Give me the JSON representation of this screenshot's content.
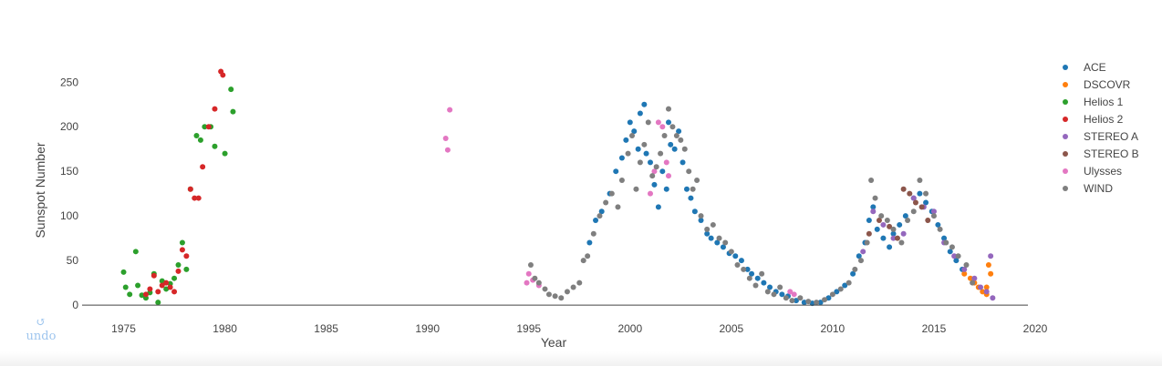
{
  "undo": {
    "icon": "↺",
    "label": "undo",
    "icon_name": "undo-icon"
  },
  "chart_data": {
    "type": "scatter",
    "title": "",
    "xlabel": "Year",
    "ylabel": "Sunspot Number",
    "xlim": [
      1972.5,
      2020
    ],
    "ylim": [
      -3,
      285
    ],
    "xticks": [
      1975,
      1980,
      1985,
      1990,
      1995,
      2000,
      2005,
      2010,
      2015,
      2020
    ],
    "yticks": [
      0,
      50,
      100,
      150,
      200,
      250
    ],
    "grid": false,
    "legend_position": "right",
    "series": [
      {
        "name": "ACE",
        "color": "#1f77b4",
        "points": [
          [
            1998.0,
            70
          ],
          [
            1998.3,
            95
          ],
          [
            1998.6,
            105
          ],
          [
            1999.0,
            125
          ],
          [
            1999.3,
            150
          ],
          [
            1999.6,
            165
          ],
          [
            1999.8,
            185
          ],
          [
            2000.0,
            205
          ],
          [
            2000.2,
            195
          ],
          [
            2000.4,
            175
          ],
          [
            2000.5,
            215
          ],
          [
            2000.7,
            225
          ],
          [
            2000.8,
            170
          ],
          [
            2001.0,
            160
          ],
          [
            2001.2,
            135
          ],
          [
            2001.4,
            110
          ],
          [
            2001.6,
            150
          ],
          [
            2001.8,
            130
          ],
          [
            2001.9,
            205
          ],
          [
            2002.0,
            180
          ],
          [
            2002.2,
            175
          ],
          [
            2002.4,
            195
          ],
          [
            2002.6,
            160
          ],
          [
            2002.8,
            130
          ],
          [
            2003.0,
            120
          ],
          [
            2003.2,
            105
          ],
          [
            2003.5,
            95
          ],
          [
            2003.8,
            80
          ],
          [
            2004.0,
            75
          ],
          [
            2004.3,
            70
          ],
          [
            2004.6,
            65
          ],
          [
            2004.9,
            58
          ],
          [
            2005.2,
            55
          ],
          [
            2005.5,
            50
          ],
          [
            2005.8,
            40
          ],
          [
            2006.0,
            35
          ],
          [
            2006.3,
            30
          ],
          [
            2006.6,
            25
          ],
          [
            2006.9,
            20
          ],
          [
            2007.2,
            15
          ],
          [
            2007.5,
            12
          ],
          [
            2007.8,
            10
          ],
          [
            2008.2,
            5
          ],
          [
            2008.6,
            3
          ],
          [
            2009.0,
            2
          ],
          [
            2009.4,
            3
          ],
          [
            2009.8,
            8
          ],
          [
            2010.2,
            15
          ],
          [
            2010.6,
            22
          ],
          [
            2011.0,
            35
          ],
          [
            2011.3,
            55
          ],
          [
            2011.6,
            70
          ],
          [
            2011.8,
            95
          ],
          [
            2012.0,
            110
          ],
          [
            2012.2,
            85
          ],
          [
            2012.5,
            75
          ],
          [
            2012.8,
            65
          ],
          [
            2013.0,
            80
          ],
          [
            2013.3,
            90
          ],
          [
            2013.6,
            100
          ],
          [
            2014.0,
            120
          ],
          [
            2014.3,
            125
          ],
          [
            2014.6,
            115
          ],
          [
            2014.9,
            105
          ],
          [
            2015.2,
            90
          ],
          [
            2015.5,
            75
          ],
          [
            2015.8,
            60
          ],
          [
            2016.1,
            50
          ],
          [
            2016.4,
            40
          ]
        ]
      },
      {
        "name": "DSCOVR",
        "color": "#ff7f0e",
        "points": [
          [
            2016.5,
            35
          ],
          [
            2016.8,
            30
          ],
          [
            2017.0,
            25
          ],
          [
            2017.2,
            20
          ],
          [
            2017.4,
            15
          ],
          [
            2017.6,
            12
          ],
          [
            2017.7,
            45
          ],
          [
            2017.8,
            35
          ],
          [
            2017.6,
            20
          ]
        ]
      },
      {
        "name": "Helios 1",
        "color": "#2ca02c",
        "points": [
          [
            1975.0,
            37
          ],
          [
            1975.1,
            20
          ],
          [
            1975.3,
            12
          ],
          [
            1975.6,
            60
          ],
          [
            1975.7,
            22
          ],
          [
            1975.9,
            11
          ],
          [
            1976.1,
            8
          ],
          [
            1976.3,
            14
          ],
          [
            1976.5,
            35
          ],
          [
            1976.7,
            3
          ],
          [
            1976.9,
            27
          ],
          [
            1977.1,
            18
          ],
          [
            1977.3,
            24
          ],
          [
            1977.5,
            30
          ],
          [
            1977.7,
            45
          ],
          [
            1977.9,
            70
          ],
          [
            1978.1,
            40
          ],
          [
            1978.3,
            130
          ],
          [
            1978.6,
            190
          ],
          [
            1978.8,
            185
          ],
          [
            1979.0,
            200
          ],
          [
            1979.3,
            200
          ],
          [
            1979.5,
            178
          ],
          [
            1980.0,
            170
          ],
          [
            1980.3,
            242
          ],
          [
            1980.4,
            217
          ]
        ]
      },
      {
        "name": "Helios 2",
        "color": "#d62728",
        "points": [
          [
            1976.1,
            12
          ],
          [
            1976.3,
            18
          ],
          [
            1976.5,
            33
          ],
          [
            1976.7,
            15
          ],
          [
            1976.9,
            22
          ],
          [
            1977.1,
            25
          ],
          [
            1977.3,
            20
          ],
          [
            1977.5,
            15
          ],
          [
            1977.7,
            38
          ],
          [
            1977.9,
            62
          ],
          [
            1978.1,
            55
          ],
          [
            1978.3,
            130
          ],
          [
            1978.5,
            120
          ],
          [
            1978.7,
            120
          ],
          [
            1978.9,
            155
          ],
          [
            1979.2,
            200
          ],
          [
            1979.5,
            220
          ],
          [
            1979.8,
            262
          ],
          [
            1979.9,
            258
          ]
        ]
      },
      {
        "name": "STEREO A",
        "color": "#9467bd",
        "points": [
          [
            2011.5,
            60
          ],
          [
            2012.0,
            105
          ],
          [
            2012.5,
            90
          ],
          [
            2013.0,
            75
          ],
          [
            2013.5,
            80
          ],
          [
            2014.0,
            120
          ],
          [
            2014.5,
            110
          ],
          [
            2015.0,
            105
          ],
          [
            2015.5,
            70
          ],
          [
            2016.0,
            55
          ],
          [
            2016.5,
            40
          ],
          [
            2017.0,
            30
          ],
          [
            2017.3,
            20
          ],
          [
            2017.6,
            15
          ],
          [
            2017.8,
            55
          ],
          [
            2017.9,
            8
          ]
        ]
      },
      {
        "name": "STEREO B",
        "color": "#8c564b",
        "points": [
          [
            2011.8,
            80
          ],
          [
            2012.3,
            95
          ],
          [
            2012.8,
            88
          ],
          [
            2013.2,
            75
          ],
          [
            2013.5,
            130
          ],
          [
            2013.8,
            125
          ],
          [
            2014.1,
            115
          ],
          [
            2014.4,
            110
          ],
          [
            2014.7,
            95
          ]
        ]
      },
      {
        "name": "Ulysses",
        "color": "#e377c2",
        "points": [
          [
            1990.9,
            187
          ],
          [
            1991.0,
            174
          ],
          [
            1991.1,
            219
          ],
          [
            1994.9,
            25
          ],
          [
            1995.0,
            35
          ],
          [
            1995.2,
            28
          ],
          [
            1995.5,
            22
          ],
          [
            2001.0,
            125
          ],
          [
            2001.2,
            150
          ],
          [
            2001.4,
            205
          ],
          [
            2001.6,
            200
          ],
          [
            2001.8,
            160
          ],
          [
            2001.9,
            145
          ],
          [
            2007.9,
            15
          ],
          [
            2008.1,
            12
          ]
        ]
      },
      {
        "name": "WIND",
        "color": "#7f7f7f",
        "points": [
          [
            1995.1,
            45
          ],
          [
            1995.3,
            30
          ],
          [
            1995.5,
            25
          ],
          [
            1995.8,
            18
          ],
          [
            1996.0,
            12
          ],
          [
            1996.3,
            10
          ],
          [
            1996.6,
            8
          ],
          [
            1996.9,
            15
          ],
          [
            1997.2,
            20
          ],
          [
            1997.5,
            25
          ],
          [
            1997.7,
            50
          ],
          [
            1997.9,
            55
          ],
          [
            1998.2,
            80
          ],
          [
            1998.5,
            100
          ],
          [
            1998.8,
            115
          ],
          [
            1999.1,
            125
          ],
          [
            1999.4,
            110
          ],
          [
            1999.6,
            140
          ],
          [
            1999.9,
            170
          ],
          [
            2000.1,
            190
          ],
          [
            2000.3,
            130
          ],
          [
            2000.5,
            160
          ],
          [
            2000.7,
            180
          ],
          [
            2000.9,
            205
          ],
          [
            2001.1,
            145
          ],
          [
            2001.3,
            155
          ],
          [
            2001.5,
            170
          ],
          [
            2001.7,
            190
          ],
          [
            2001.9,
            220
          ],
          [
            2002.1,
            200
          ],
          [
            2002.3,
            190
          ],
          [
            2002.5,
            185
          ],
          [
            2002.7,
            175
          ],
          [
            2002.9,
            150
          ],
          [
            2003.1,
            130
          ],
          [
            2003.3,
            140
          ],
          [
            2003.5,
            100
          ],
          [
            2003.8,
            85
          ],
          [
            2004.1,
            90
          ],
          [
            2004.4,
            75
          ],
          [
            2004.7,
            70
          ],
          [
            2005.0,
            60
          ],
          [
            2005.3,
            45
          ],
          [
            2005.6,
            40
          ],
          [
            2005.9,
            30
          ],
          [
            2006.2,
            22
          ],
          [
            2006.5,
            35
          ],
          [
            2006.8,
            15
          ],
          [
            2007.1,
            12
          ],
          [
            2007.4,
            20
          ],
          [
            2007.7,
            8
          ],
          [
            2008.0,
            5
          ],
          [
            2008.4,
            8
          ],
          [
            2008.8,
            4
          ],
          [
            2009.2,
            3
          ],
          [
            2009.6,
            6
          ],
          [
            2010.0,
            12
          ],
          [
            2010.4,
            18
          ],
          [
            2010.8,
            25
          ],
          [
            2011.1,
            40
          ],
          [
            2011.4,
            50
          ],
          [
            2011.7,
            70
          ],
          [
            2011.9,
            140
          ],
          [
            2012.1,
            120
          ],
          [
            2012.4,
            100
          ],
          [
            2012.7,
            95
          ],
          [
            2013.0,
            85
          ],
          [
            2013.4,
            70
          ],
          [
            2013.7,
            95
          ],
          [
            2014.0,
            105
          ],
          [
            2014.3,
            140
          ],
          [
            2014.6,
            125
          ],
          [
            2015.0,
            100
          ],
          [
            2015.3,
            85
          ],
          [
            2015.6,
            70
          ],
          [
            2015.9,
            65
          ],
          [
            2016.2,
            55
          ],
          [
            2016.6,
            45
          ],
          [
            2016.9,
            25
          ]
        ]
      }
    ]
  }
}
